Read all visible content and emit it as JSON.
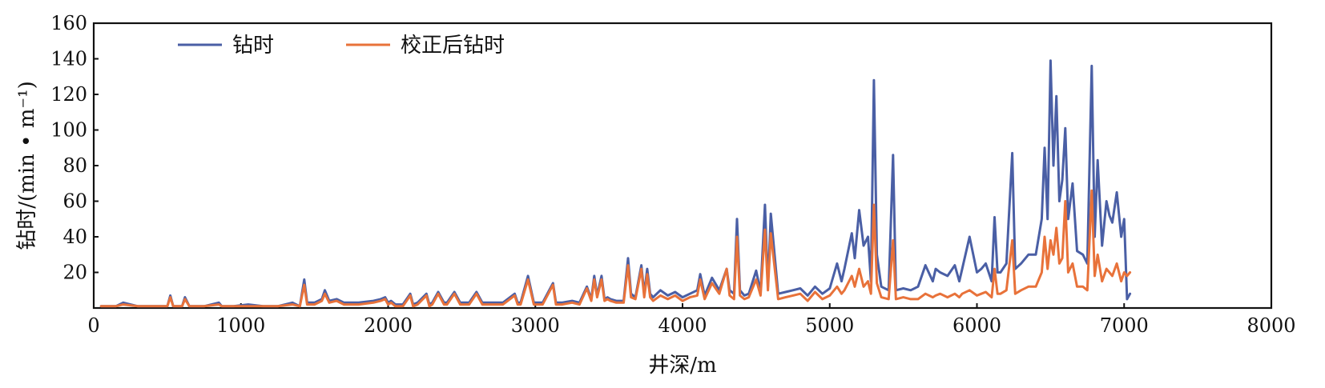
{
  "chart_data": {
    "type": "line",
    "title": "",
    "xlabel": "井深/m",
    "ylabel": "钻时/(min • m⁻¹)",
    "xlim": [
      0,
      8000
    ],
    "ylim": [
      0,
      160
    ],
    "xticks": [
      0,
      1000,
      2000,
      3000,
      4000,
      5000,
      6000,
      7000,
      8000
    ],
    "yticks": [
      20,
      40,
      60,
      80,
      100,
      120,
      140,
      160
    ],
    "grid": false,
    "legend_position": "top-left",
    "x": [
      50,
      150,
      200,
      300,
      400,
      500,
      520,
      540,
      600,
      620,
      650,
      750,
      850,
      870,
      950,
      1050,
      1150,
      1250,
      1350,
      1400,
      1430,
      1450,
      1500,
      1550,
      1570,
      1600,
      1650,
      1700,
      1750,
      1800,
      1900,
      1950,
      1980,
      2000,
      2020,
      2050,
      2100,
      2150,
      2170,
      2200,
      2260,
      2280,
      2300,
      2340,
      2380,
      2400,
      2450,
      2490,
      2510,
      2550,
      2600,
      2640,
      2660,
      2700,
      2780,
      2860,
      2880,
      2900,
      2950,
      2990,
      3010,
      3050,
      3120,
      3140,
      3180,
      3250,
      3300,
      3350,
      3380,
      3400,
      3420,
      3450,
      3470,
      3490,
      3510,
      3550,
      3600,
      3630,
      3650,
      3680,
      3720,
      3740,
      3760,
      3780,
      3800,
      3850,
      3900,
      3950,
      4000,
      4050,
      4100,
      4120,
      4150,
      4200,
      4250,
      4300,
      4320,
      4350,
      4370,
      4390,
      4420,
      4450,
      4500,
      4530,
      4560,
      4580,
      4600,
      4650,
      4700,
      4750,
      4800,
      4850,
      4900,
      4950,
      5000,
      5050,
      5080,
      5100,
      5150,
      5170,
      5200,
      5230,
      5260,
      5280,
      5300,
      5320,
      5350,
      5400,
      5430,
      5450,
      5500,
      5550,
      5600,
      5650,
      5700,
      5720,
      5750,
      5800,
      5850,
      5880,
      5900,
      5950,
      6000,
      6030,
      6060,
      6100,
      6120,
      6140,
      6160,
      6200,
      6240,
      6260,
      6300,
      6350,
      6400,
      6440,
      6460,
      6480,
      6500,
      6520,
      6540,
      6560,
      6580,
      6600,
      6620,
      6650,
      6680,
      6720,
      6750,
      6780,
      6800,
      6820,
      6850,
      6880,
      6900,
      6920,
      6950,
      6980,
      7000,
      7020,
      7040
    ],
    "series": [
      {
        "name": "钻时",
        "color": "#4a5fa5",
        "values": [
          1,
          1,
          3,
          1,
          1,
          1,
          7,
          1,
          1,
          6,
          1,
          1,
          3,
          1,
          1,
          2,
          1,
          1,
          3,
          1,
          16,
          3,
          3,
          5,
          10,
          4,
          5,
          3,
          3,
          3,
          4,
          5,
          6,
          3,
          4,
          2,
          2,
          8,
          2,
          3,
          8,
          2,
          3,
          9,
          3,
          3,
          9,
          3,
          3,
          3,
          9,
          3,
          3,
          3,
          3,
          8,
          3,
          3,
          18,
          3,
          3,
          3,
          14,
          3,
          3,
          4,
          3,
          12,
          5,
          18,
          7,
          18,
          5,
          6,
          5,
          4,
          4,
          28,
          8,
          6,
          24,
          8,
          22,
          8,
          6,
          10,
          7,
          9,
          6,
          8,
          10,
          19,
          7,
          17,
          10,
          22,
          10,
          8,
          50,
          10,
          7,
          8,
          21,
          9,
          58,
          12,
          53,
          8,
          9,
          10,
          11,
          7,
          12,
          8,
          11,
          25,
          15,
          22,
          42,
          28,
          55,
          35,
          40,
          15,
          128,
          30,
          12,
          10,
          86,
          10,
          11,
          10,
          12,
          24,
          15,
          22,
          20,
          18,
          24,
          15,
          22,
          40,
          20,
          22,
          25,
          15,
          51,
          20,
          20,
          25,
          87,
          22,
          25,
          30,
          30,
          50,
          90,
          50,
          139,
          80,
          119,
          60,
          72,
          101,
          50,
          70,
          32,
          30,
          25,
          136,
          40,
          83,
          35,
          60,
          52,
          48,
          65,
          40,
          50,
          5,
          8
        ]
      },
      {
        "name": "校正后钻时",
        "color": "#e8723a",
        "values": [
          1,
          1,
          2,
          1,
          1,
          1,
          6,
          1,
          1,
          5,
          1,
          1,
          2,
          1,
          1,
          1,
          1,
          1,
          2,
          1,
          13,
          2,
          2,
          4,
          8,
          3,
          4,
          2,
          2,
          2,
          3,
          4,
          5,
          2,
          3,
          1,
          1,
          7,
          1,
          2,
          7,
          1,
          2,
          8,
          2,
          2,
          8,
          2,
          2,
          2,
          8,
          2,
          2,
          2,
          2,
          7,
          2,
          2,
          16,
          2,
          2,
          2,
          13,
          2,
          2,
          3,
          2,
          11,
          4,
          16,
          6,
          16,
          4,
          5,
          4,
          3,
          3,
          24,
          6,
          5,
          22,
          6,
          19,
          6,
          4,
          7,
          5,
          7,
          4,
          6,
          7,
          16,
          5,
          14,
          8,
          22,
          7,
          5,
          40,
          7,
          5,
          6,
          16,
          7,
          44,
          10,
          42,
          5,
          6,
          7,
          8,
          4,
          9,
          5,
          7,
          12,
          8,
          10,
          18,
          12,
          22,
          12,
          15,
          8,
          58,
          14,
          6,
          5,
          38,
          5,
          6,
          5,
          5,
          8,
          6,
          7,
          8,
          6,
          8,
          6,
          8,
          10,
          7,
          8,
          9,
          6,
          22,
          8,
          8,
          10,
          38,
          8,
          10,
          12,
          12,
          20,
          40,
          22,
          38,
          30,
          45,
          25,
          28,
          60,
          20,
          25,
          12,
          12,
          10,
          66,
          18,
          30,
          15,
          22,
          20,
          18,
          25,
          15,
          20,
          18,
          20
        ]
      }
    ]
  }
}
